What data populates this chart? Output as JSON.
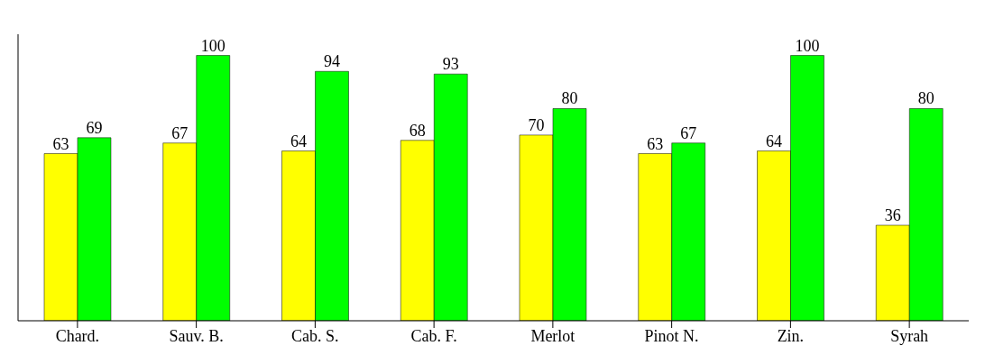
{
  "chart_data": {
    "type": "bar",
    "categories": [
      "Chard.",
      "Sauv. B.",
      "Cab. S.",
      "Cab. F.",
      "Merlot",
      "Pinot N.",
      "Zin.",
      "Syrah"
    ],
    "series": [
      {
        "color": "#ffff00",
        "values": [
          63,
          67,
          64,
          68,
          70,
          63,
          64,
          36
        ]
      },
      {
        "color": "#00ff00",
        "values": [
          69,
          100,
          94,
          93,
          80,
          67,
          100,
          80
        ]
      }
    ],
    "data_labels": true,
    "grid": false,
    "legend": false
  }
}
